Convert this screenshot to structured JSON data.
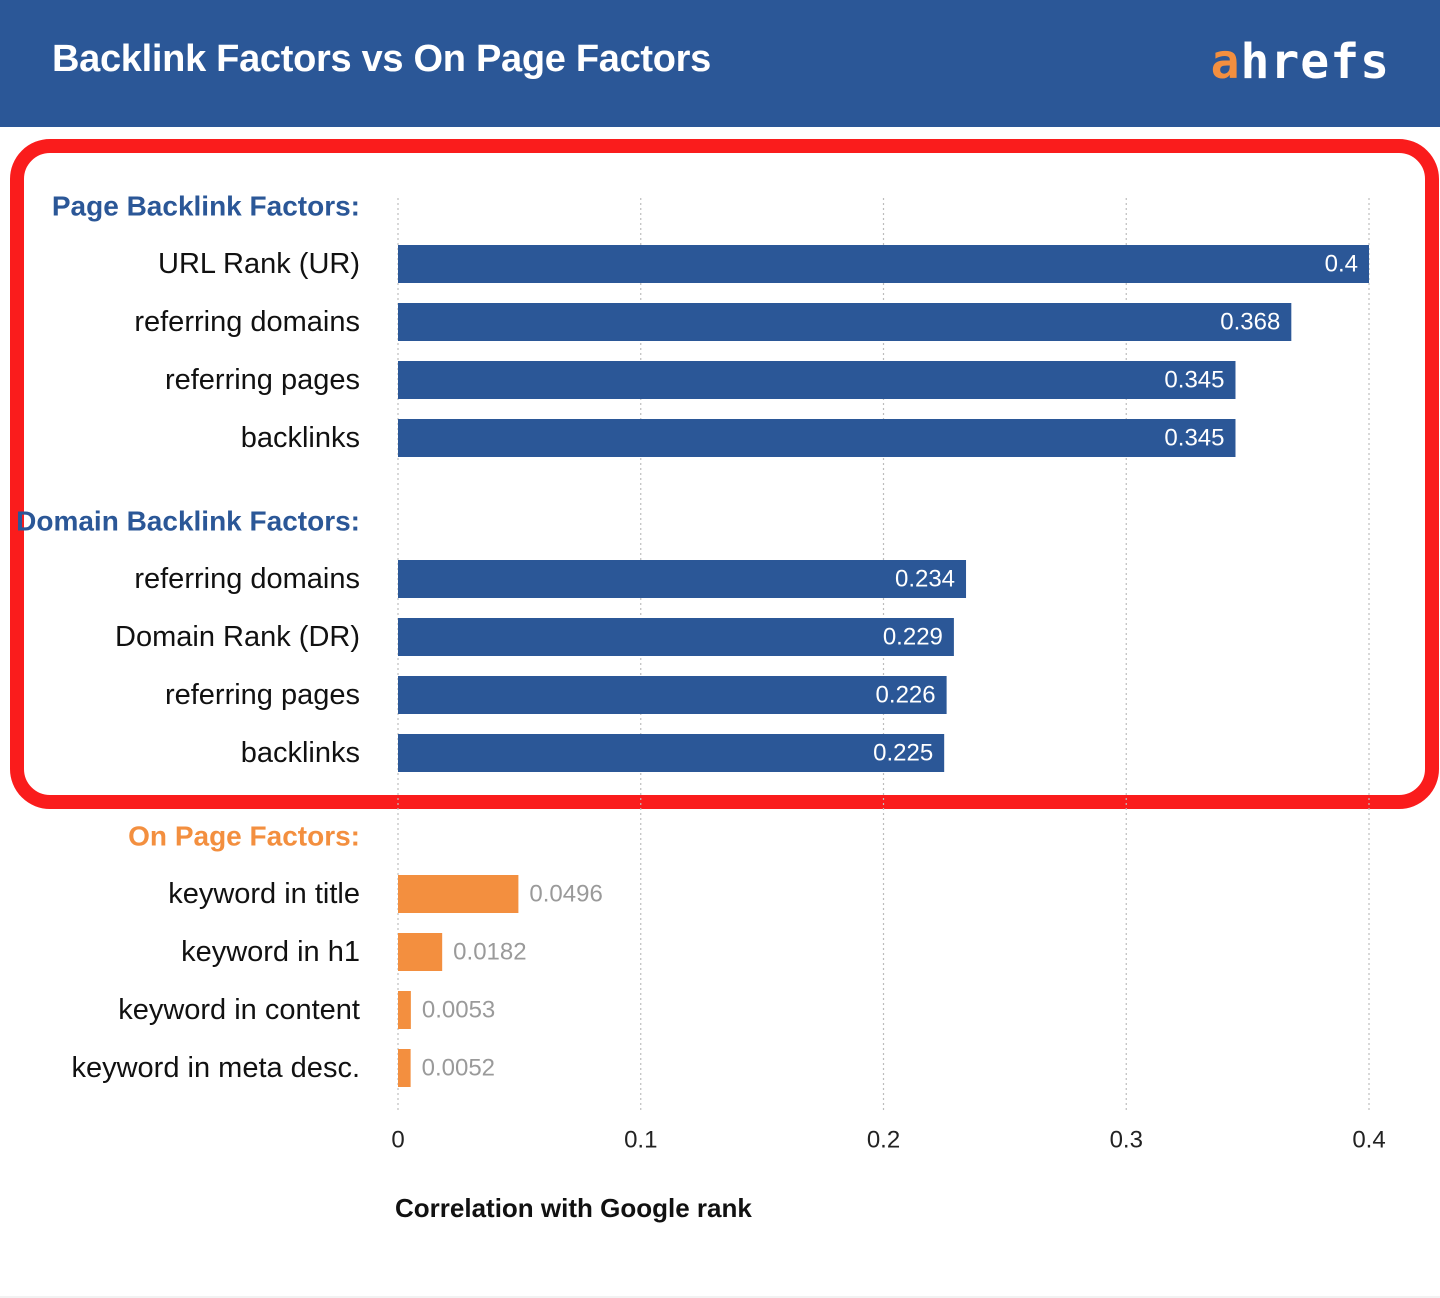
{
  "header": {
    "title": "Backlink Factors vs On Page Factors",
    "logo_first": "a",
    "logo_rest": "hrefs",
    "background_color": "#2b5797",
    "logo_accent_color": "#f38f3f"
  },
  "highlight": {
    "color": "#fa1c1c"
  },
  "chart_data": {
    "type": "bar",
    "orientation": "horizontal",
    "title": "",
    "xlabel": "Correlation with Google rank",
    "ylabel": "",
    "xlim": [
      0,
      0.4
    ],
    "x_ticks": [
      {
        "value": 0,
        "label": "0"
      },
      {
        "value": 0.1,
        "label": "0.1"
      },
      {
        "value": 0.2,
        "label": "0.2"
      },
      {
        "value": 0.3,
        "label": "0.3"
      },
      {
        "value": 0.4,
        "label": "0.4"
      }
    ],
    "grid": "vertical dotted",
    "groups": [
      {
        "name": "Page Backlink Factors:",
        "color": "#2b5797",
        "heading_color": "#2b5797",
        "value_label_color": "#ffffff",
        "value_label_position": "inside",
        "items": [
          {
            "label": "URL Rank (UR)",
            "value": 0.4,
            "value_label": "0.4"
          },
          {
            "label": "referring domains",
            "value": 0.368,
            "value_label": "0.368"
          },
          {
            "label": "referring pages",
            "value": 0.345,
            "value_label": "0.345"
          },
          {
            "label": "backlinks",
            "value": 0.345,
            "value_label": "0.345"
          }
        ]
      },
      {
        "name": "Domain Backlink Factors:",
        "color": "#2b5797",
        "heading_color": "#2b5797",
        "value_label_color": "#ffffff",
        "value_label_position": "inside",
        "items": [
          {
            "label": "referring domains",
            "value": 0.234,
            "value_label": "0.234"
          },
          {
            "label": "Domain Rank (DR)",
            "value": 0.229,
            "value_label": "0.229"
          },
          {
            "label": "referring pages",
            "value": 0.226,
            "value_label": "0.226"
          },
          {
            "label": "backlinks",
            "value": 0.225,
            "value_label": "0.225"
          }
        ]
      },
      {
        "name": "On Page Factors:",
        "color": "#f38f3f",
        "heading_color": "#f38f3f",
        "value_label_color": "#9a9a9a",
        "value_label_position": "outside",
        "items": [
          {
            "label": "keyword in title",
            "value": 0.0496,
            "value_label": "0.0496"
          },
          {
            "label": "keyword in h1",
            "value": 0.0182,
            "value_label": "0.0182"
          },
          {
            "label": "keyword in content",
            "value": 0.0053,
            "value_label": "0.0053"
          },
          {
            "label": "keyword in meta desc.",
            "value": 0.0052,
            "value_label": "0.0052"
          }
        ]
      }
    ]
  }
}
